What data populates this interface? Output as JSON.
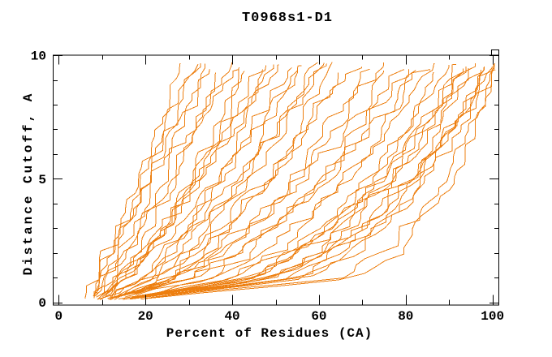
{
  "chart_data": {
    "type": "line",
    "title": "T0968s1-D1",
    "xlabel": "Percent of Residues (CA)",
    "ylabel": "Distance Cutoff, A",
    "xlim": [
      0,
      100
    ],
    "ylim": [
      0,
      10
    ],
    "grid": false,
    "legend": "none",
    "x_major_ticks": [
      0,
      20,
      40,
      60,
      80,
      100
    ],
    "x_tick_labels": [
      "0",
      "20",
      "40",
      "60",
      "80",
      "100"
    ],
    "x_minor_tick_step": 10,
    "y_major_ticks": [
      0,
      5,
      10
    ],
    "y_tick_labels": [
      "0",
      "5",
      "10"
    ],
    "y_minor_tick_step": 1,
    "line_color": "#ED7F10",
    "axis_color": "#000000",
    "background_color": "#FFFFFF",
    "anchor_cutoffs": [
      0,
      1,
      2,
      3.5,
      5,
      7,
      9.5
    ],
    "curves_percent_at_cutoff": [
      [
        8,
        10,
        12,
        15,
        18,
        22,
        27
      ],
      [
        7,
        9,
        11,
        14,
        18,
        23,
        30
      ],
      [
        9,
        12,
        15,
        19,
        22,
        27,
        33
      ],
      [
        6,
        8,
        11,
        16,
        20,
        27,
        35
      ],
      [
        10,
        14,
        17,
        22,
        26,
        30,
        36
      ],
      [
        8,
        11,
        14,
        19,
        24,
        30,
        38
      ],
      [
        7,
        11,
        15,
        20,
        26,
        32,
        40
      ],
      [
        9,
        16,
        20,
        25,
        30,
        36,
        42
      ],
      [
        11,
        16,
        21,
        26,
        31,
        37,
        44
      ],
      [
        8,
        15,
        20,
        26,
        32,
        38,
        46
      ],
      [
        12,
        20,
        25,
        31,
        36,
        42,
        48
      ],
      [
        9,
        14,
        19,
        26,
        32,
        40,
        50
      ],
      [
        10,
        19,
        24,
        31,
        37,
        44,
        52
      ],
      [
        13,
        24,
        29,
        35,
        41,
        47,
        54
      ],
      [
        8,
        15,
        21,
        29,
        36,
        45,
        56
      ],
      [
        11,
        25,
        31,
        38,
        44,
        51,
        58
      ],
      [
        9,
        18,
        25,
        33,
        41,
        50,
        60
      ],
      [
        10,
        27,
        34,
        42,
        48,
        55,
        62
      ],
      [
        12,
        26,
        33,
        41,
        48,
        56,
        65
      ],
      [
        8,
        22,
        30,
        39,
        48,
        57,
        68
      ],
      [
        11,
        30,
        38,
        47,
        54,
        62,
        70
      ],
      [
        9,
        28,
        36,
        46,
        54,
        63,
        73
      ],
      [
        13,
        36,
        44,
        53,
        60,
        68,
        76
      ],
      [
        10,
        28,
        37,
        47,
        56,
        67,
        78
      ],
      [
        8,
        31,
        41,
        52,
        60,
        70,
        80
      ],
      [
        12,
        40,
        50,
        59,
        66,
        74,
        82
      ],
      [
        9,
        37,
        47,
        57,
        66,
        75,
        85
      ],
      [
        11,
        45,
        55,
        65,
        72,
        79,
        87
      ],
      [
        10,
        42,
        52,
        63,
        71,
        80,
        89
      ],
      [
        8,
        50,
        60,
        70,
        76,
        84,
        91
      ],
      [
        12,
        49,
        59,
        69,
        77,
        85,
        93
      ],
      [
        9,
        53,
        63,
        73,
        80,
        87,
        95
      ],
      [
        10,
        45,
        56,
        68,
        76,
        86,
        96
      ],
      [
        8,
        59,
        68,
        77,
        84,
        90,
        97
      ],
      [
        11,
        55,
        65,
        75,
        83,
        90,
        98
      ],
      [
        9,
        50,
        61,
        72,
        81,
        90,
        99
      ],
      [
        10,
        65,
        75,
        82,
        88,
        94,
        100
      ],
      [
        12,
        57,
        67,
        77,
        84,
        92,
        100
      ],
      [
        8,
        50,
        61,
        73,
        82,
        91,
        100
      ],
      [
        14,
        43,
        54,
        65,
        74,
        84,
        94
      ],
      [
        7,
        10,
        12,
        16,
        20,
        25,
        31
      ],
      [
        10,
        15,
        20,
        26,
        32,
        39,
        47
      ],
      [
        12,
        22,
        28,
        35,
        42,
        50,
        59
      ],
      [
        9,
        31,
        41,
        52,
        62,
        72,
        84
      ],
      [
        13,
        45,
        55,
        66,
        74,
        83,
        92
      ],
      [
        12,
        68,
        78,
        85,
        90,
        95,
        99
      ]
    ]
  }
}
